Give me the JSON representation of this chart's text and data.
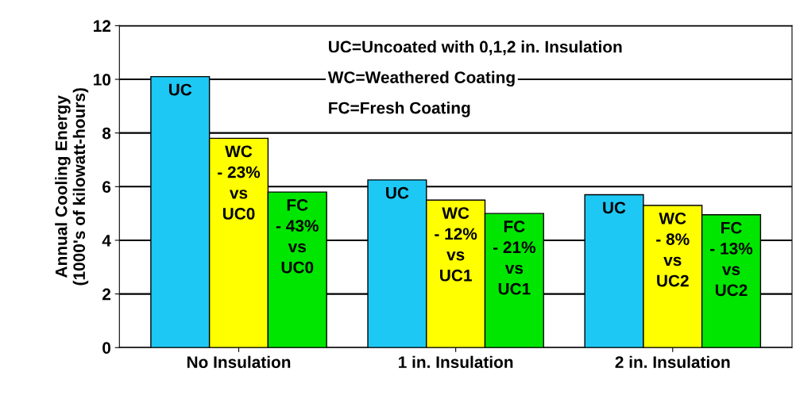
{
  "chart_data": {
    "type": "bar",
    "ylabel": "Annual Cooling Energy\n(1000's of kilowatt-hours)",
    "categories": [
      "No Insulation",
      "1 in. Insulation",
      "2 in. Insulation"
    ],
    "series": [
      {
        "color": "#1ec8f5",
        "values": [
          10.1,
          6.25,
          5.7
        ]
      },
      {
        "color": "#ffff00",
        "values": [
          7.8,
          5.5,
          5.3
        ]
      },
      {
        "color": "#00e600",
        "values": [
          5.8,
          5.0,
          4.95
        ]
      }
    ],
    "ylim": [
      0,
      12
    ],
    "yticks": [
      0,
      2,
      4,
      6,
      8,
      10,
      12
    ],
    "grid": "y",
    "annotations": [
      "UC=Uncoated with 0,1,2 in. Insulation",
      "WC=Weathered Coating",
      "FC=Fresh Coating",
      "UC",
      "WC\n- 23%\nvs\nUC0",
      "FC\n- 43%\nvs\nUC0",
      "UC",
      "WC\n- 12%\nvs\nUC1",
      "FC\n- 21%\nvs\nUC1",
      "UC",
      "WC\n- 8%\nvs\nUC2",
      "FC\n- 13%\nvs\nUC2"
    ]
  }
}
